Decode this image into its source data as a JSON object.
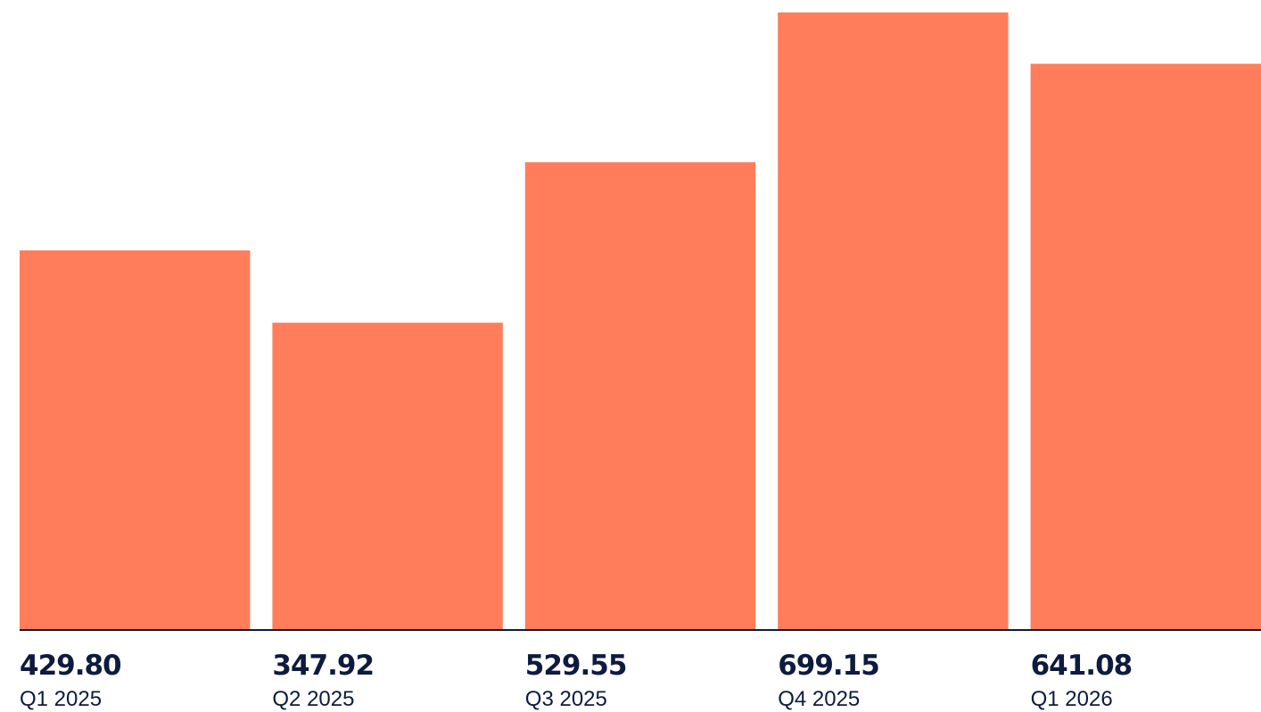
{
  "colors": {
    "bar": "#ff7d5a",
    "axis": "#0d1b3e",
    "value_text": "#0d1b3e",
    "category_text": "#0d1b3e"
  },
  "chart_data": {
    "type": "bar",
    "categories": [
      "Q1 2025",
      "Q2 2025",
      "Q3 2025",
      "Q4 2025",
      "Q1 2026"
    ],
    "values": [
      429.8,
      347.92,
      529.55,
      699.15,
      641.08
    ],
    "value_labels": [
      "429.80",
      "347.92",
      "529.55",
      "699.15",
      "641.08"
    ],
    "title": "",
    "xlabel": "",
    "ylabel": "",
    "ylim": [
      0,
      699.15
    ],
    "grid": false,
    "legend": "none"
  }
}
